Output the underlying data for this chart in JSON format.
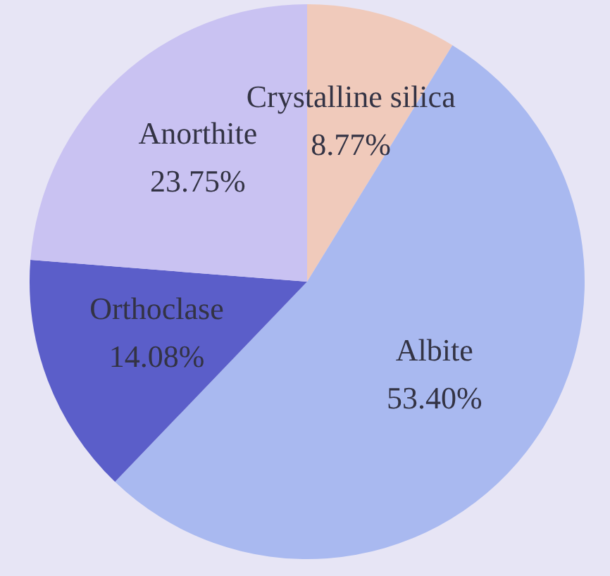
{
  "chart_data": {
    "type": "pie",
    "categories": [
      "Crystalline silica",
      "Albite",
      "Orthoclase",
      "Anorthite"
    ],
    "values": [
      8.77,
      53.4,
      14.08,
      23.75
    ],
    "value_labels": [
      "8.77%",
      "53.40%",
      "14.08%",
      "23.75%"
    ],
    "colors": [
      "#f0cabb",
      "#a9b9f0",
      "#5b5ec9",
      "#c9c2f2"
    ]
  }
}
